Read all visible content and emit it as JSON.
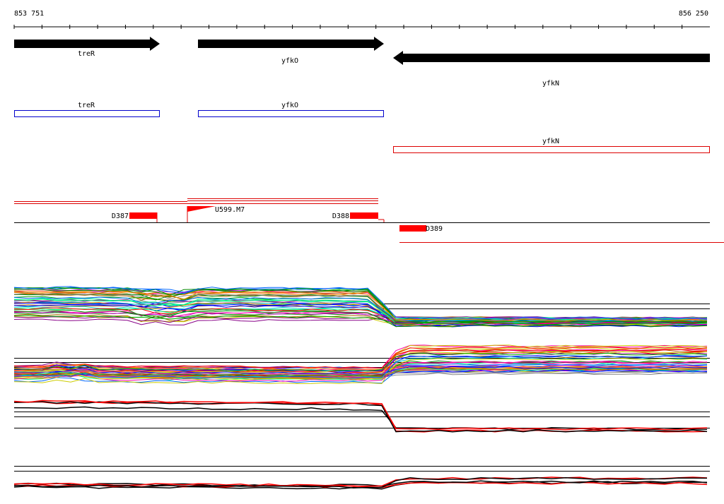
{
  "ruler": {
    "start": "853 751",
    "end": "856 250"
  },
  "genes": [
    {
      "label": "treR"
    },
    {
      "label": "yfkO"
    },
    {
      "label": "yfkN"
    }
  ],
  "annotations": [
    {
      "label": "treR"
    },
    {
      "label": "yfkO"
    },
    {
      "label": "yfkN"
    }
  ],
  "features": [
    {
      "label": "D387"
    },
    {
      "label": "U599.M7"
    },
    {
      "label": "D388"
    },
    {
      "label": "D389"
    }
  ]
}
